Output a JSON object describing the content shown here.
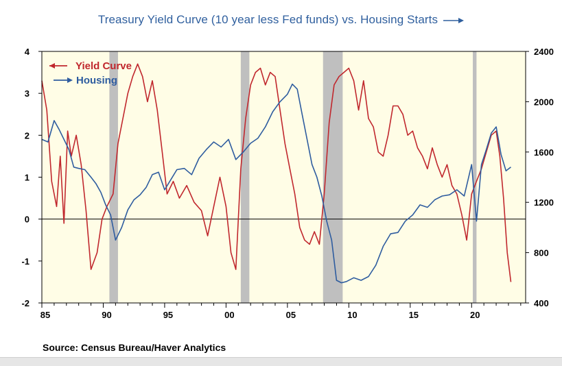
{
  "chart_data": {
    "type": "line",
    "title": "Treasury Yield Curve (10 year less Fed funds) vs. Housing Starts",
    "source": "Source:  Census Bureau/Haver Analytics",
    "x_ticks": [
      1985,
      1990,
      1995,
      2000,
      2005,
      2010,
      2015,
      2020
    ],
    "x_tick_labels": [
      "85",
      "90",
      "95",
      "00",
      "05",
      "10",
      "15",
      "20"
    ],
    "xlim": [
      1985.0,
      2024.4
    ],
    "y_left": {
      "ylim": [
        -2,
        4
      ],
      "ticks": [
        -2,
        -1,
        0,
        1,
        2,
        3,
        4
      ],
      "tick_labels": [
        "-2",
        "-1",
        "0",
        "1",
        "2",
        "3",
        "4"
      ]
    },
    "y_right": {
      "ylim": [
        400,
        2400
      ],
      "ticks": [
        400,
        800,
        1200,
        1600,
        2000,
        2400
      ],
      "tick_labels": [
        "400",
        "800",
        "1200",
        "1600",
        "2000",
        "2400"
      ]
    },
    "recessions": [
      [
        1990.5,
        1991.2
      ],
      [
        2001.2,
        2001.9
      ],
      [
        2007.9,
        2009.5
      ],
      [
        2020.1,
        2020.4
      ]
    ],
    "legend": {
      "position": "top-left"
    },
    "colors": {
      "yield_curve": "#c0272d",
      "housing": "#2e5c9f",
      "plot_bg": "#fffde6",
      "recession": "#bfbfbf"
    },
    "series": [
      {
        "name": "Yield Curve",
        "axis": "left",
        "x": [
          1985.0,
          1985.4,
          1985.8,
          1986.2,
          1986.5,
          1986.8,
          1987.1,
          1987.4,
          1987.8,
          1988.2,
          1988.6,
          1989.0,
          1989.5,
          1989.9,
          1990.3,
          1990.8,
          1991.2,
          1991.6,
          1992.0,
          1992.4,
          1992.8,
          1993.2,
          1993.6,
          1994.0,
          1994.4,
          1994.8,
          1995.2,
          1995.7,
          1996.2,
          1996.8,
          1997.4,
          1998.0,
          1998.5,
          1999.0,
          1999.5,
          2000.0,
          2000.4,
          2000.8,
          2001.2,
          2001.6,
          2002.0,
          2002.4,
          2002.8,
          2003.2,
          2003.6,
          2004.0,
          2004.4,
          2004.8,
          2005.2,
          2005.6,
          2006.0,
          2006.4,
          2006.8,
          2007.2,
          2007.6,
          2008.0,
          2008.4,
          2008.8,
          2009.2,
          2009.6,
          2010.0,
          2010.4,
          2010.8,
          2011.2,
          2011.6,
          2012.0,
          2012.4,
          2012.8,
          2013.2,
          2013.6,
          2014.0,
          2014.4,
          2014.8,
          2015.2,
          2015.6,
          2016.0,
          2016.4,
          2016.8,
          2017.2,
          2017.6,
          2018.0,
          2018.4,
          2018.8,
          2019.2,
          2019.6,
          2020.0,
          2020.4,
          2020.8,
          2021.2,
          2021.6,
          2022.0,
          2022.3,
          2022.6,
          2022.9,
          2023.2
        ],
        "values": [
          3.3,
          2.6,
          0.9,
          0.3,
          1.5,
          -0.1,
          2.1,
          1.5,
          2.0,
          1.3,
          0.2,
          -1.2,
          -0.8,
          0.0,
          0.3,
          0.6,
          1.8,
          2.4,
          3.0,
          3.4,
          3.7,
          3.4,
          2.8,
          3.3,
          2.6,
          1.6,
          0.6,
          0.9,
          0.5,
          0.8,
          0.4,
          0.2,
          -0.4,
          0.3,
          1.0,
          0.3,
          -0.8,
          -1.2,
          1.2,
          2.4,
          3.2,
          3.5,
          3.6,
          3.2,
          3.5,
          3.4,
          2.6,
          1.8,
          1.2,
          0.6,
          -0.2,
          -0.5,
          -0.6,
          -0.3,
          -0.6,
          0.6,
          2.3,
          3.2,
          3.4,
          3.5,
          3.6,
          3.3,
          2.6,
          3.3,
          2.4,
          2.2,
          1.6,
          1.5,
          2.0,
          2.7,
          2.7,
          2.5,
          2.0,
          2.1,
          1.7,
          1.5,
          1.2,
          1.7,
          1.3,
          1.0,
          1.3,
          0.8,
          0.6,
          0.1,
          -0.5,
          0.6,
          0.9,
          1.2,
          1.6,
          2.0,
          2.1,
          1.5,
          0.5,
          -0.8,
          -1.5
        ]
      },
      {
        "name": "Housing",
        "axis": "right",
        "x": [
          1985.0,
          1985.5,
          1986.0,
          1986.4,
          1986.8,
          1987.2,
          1987.6,
          1988.0,
          1988.5,
          1989.0,
          1989.4,
          1989.8,
          1990.2,
          1990.6,
          1991.0,
          1991.5,
          1992.0,
          1992.5,
          1993.0,
          1993.5,
          1994.0,
          1994.5,
          1995.0,
          1995.5,
          1996.0,
          1996.6,
          1997.2,
          1997.8,
          1998.4,
          1999.0,
          1999.6,
          2000.2,
          2000.8,
          2001.4,
          2002.0,
          2002.6,
          2003.2,
          2003.8,
          2004.4,
          2005.0,
          2005.4,
          2005.8,
          2006.2,
          2006.6,
          2007.0,
          2007.4,
          2007.8,
          2008.2,
          2008.6,
          2009.0,
          2009.4,
          2009.8,
          2010.4,
          2011.0,
          2011.6,
          2012.2,
          2012.8,
          2013.4,
          2014.0,
          2014.6,
          2015.2,
          2015.8,
          2016.4,
          2017.0,
          2017.6,
          2018.2,
          2018.8,
          2019.4,
          2020.0,
          2020.4,
          2020.8,
          2021.2,
          2021.6,
          2022.0,
          2022.4,
          2022.8,
          2023.2
        ],
        "values": [
          1700,
          1680,
          1850,
          1780,
          1700,
          1620,
          1480,
          1470,
          1460,
          1400,
          1350,
          1280,
          1180,
          1100,
          900,
          1000,
          1140,
          1220,
          1260,
          1320,
          1420,
          1440,
          1300,
          1380,
          1460,
          1470,
          1420,
          1550,
          1620,
          1680,
          1640,
          1700,
          1540,
          1600,
          1670,
          1710,
          1800,
          1920,
          2000,
          2060,
          2140,
          2100,
          1900,
          1700,
          1500,
          1400,
          1250,
          1050,
          900,
          580,
          560,
          570,
          600,
          580,
          610,
          700,
          850,
          950,
          960,
          1050,
          1100,
          1180,
          1160,
          1220,
          1250,
          1260,
          1300,
          1250,
          1500,
          1050,
          1500,
          1620,
          1750,
          1800,
          1580,
          1450,
          1480
        ]
      }
    ]
  }
}
